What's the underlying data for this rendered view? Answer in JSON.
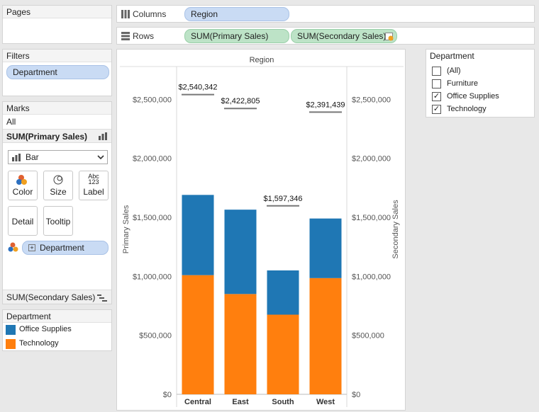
{
  "pages": {
    "title": "Pages"
  },
  "filters": {
    "title": "Filters",
    "pill": "Department"
  },
  "shelves": {
    "columns_label": "Columns",
    "columns_pill": "Region",
    "rows_label": "Rows",
    "rows_pills": [
      "SUM(Primary Sales)",
      "SUM(Secondary Sales)"
    ]
  },
  "marks": {
    "title": "Marks",
    "all_label": "All",
    "primary_label": "SUM(Primary Sales)",
    "mark_type": "Bar",
    "buttons": {
      "color": "Color",
      "size": "Size",
      "label": "Label",
      "label_glyph_top": "Abc",
      "label_glyph_bottom": "123",
      "detail": "Detail",
      "tooltip": "Tooltip"
    },
    "field_pill": "Department",
    "secondary_label": "SUM(Secondary Sales)"
  },
  "legend": {
    "title": "Department",
    "items": [
      {
        "label": "Office Supplies",
        "color": "#1f77b4"
      },
      {
        "label": "Technology",
        "color": "#ff7f0e"
      }
    ]
  },
  "filter_card": {
    "title": "Department",
    "options": [
      {
        "label": "(All)",
        "checked": false
      },
      {
        "label": "Furniture",
        "checked": false
      },
      {
        "label": "Office Supplies",
        "checked": true
      },
      {
        "label": "Technology",
        "checked": true
      }
    ]
  },
  "chart_data": {
    "type": "bar",
    "header": "Region",
    "categories": [
      "Central",
      "East",
      "South",
      "West"
    ],
    "series": [
      {
        "name": "Technology",
        "color": "#ff7f0e",
        "values": [
          1010000,
          850000,
          675000,
          985000
        ]
      },
      {
        "name": "Office Supplies",
        "color": "#1f77b4",
        "values": [
          680000,
          715000,
          375000,
          505000
        ]
      }
    ],
    "secondary_values": [
      2540342,
      2422805,
      1597346,
      2391439
    ],
    "secondary_labels": [
      "$2,540,342",
      "$2,422,805",
      "$1,597,346",
      "$2,391,439"
    ],
    "ylabel": "Primary Sales",
    "y2label": "Secondary Sales",
    "ylim": [
      0,
      2700000
    ],
    "yticks": [
      0,
      500000,
      1000000,
      1500000,
      2000000,
      2500000
    ],
    "ytick_labels": [
      "$0",
      "$500,000",
      "$1,000,000",
      "$1,500,000",
      "$2,000,000",
      "$2,500,000"
    ]
  }
}
